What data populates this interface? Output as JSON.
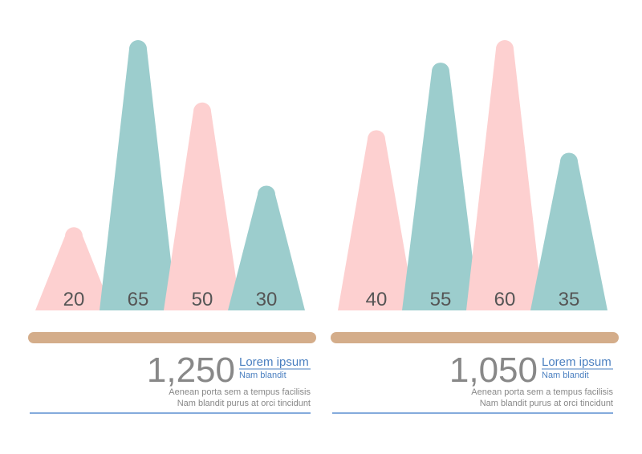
{
  "chart_data": [
    {
      "type": "peak",
      "values": [
        20,
        65,
        50,
        30
      ],
      "colors": [
        "#fdd0d0",
        "#9ccdcd",
        "#fdd0d0",
        "#9ccdcd"
      ],
      "headline": "1,250",
      "link_text": "Lorem ipsum",
      "subtitle": "Nam blandit",
      "description": [
        "Aenean porta sem a tempus facilisis",
        "Nam blandit purus at orci tincidunt"
      ]
    },
    {
      "type": "peak",
      "values": [
        40,
        55,
        60,
        35
      ],
      "colors": [
        "#fdd0d0",
        "#9ccdcd",
        "#fdd0d0",
        "#9ccdcd"
      ],
      "headline": "1,050",
      "link_text": "Lorem ipsum",
      "subtitle": "Nam blandit",
      "description": [
        "Aenean porta sem a tempus facilisis",
        "Nam blandit purus at orci tincidunt"
      ]
    }
  ]
}
